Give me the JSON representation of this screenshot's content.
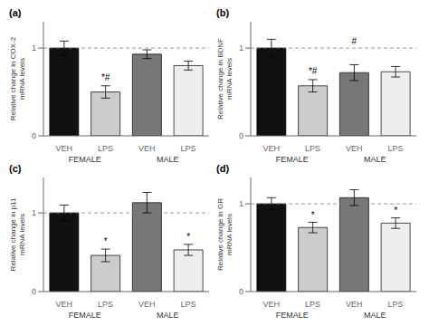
{
  "chart_data": [
    {
      "type": "bar",
      "title": "(a)",
      "ylabel": "Relative change in COX-2\nmRNA levels",
      "categories": [
        "VEH",
        "LPS",
        "VEH",
        "LPS"
      ],
      "groups": [
        "FEMALE",
        "FEMALE",
        "MALE",
        "MALE"
      ],
      "values": [
        1.0,
        0.5,
        0.93,
        0.8
      ],
      "errors": [
        0.08,
        0.07,
        0.05,
        0.05
      ],
      "colors": [
        "#111111",
        "#cccccc",
        "#777777",
        "#eeeeee"
      ],
      "ylim": [
        0,
        1.3
      ],
      "yticks": [
        0,
        1
      ],
      "reference_line": 1.0,
      "annotations": [
        {
          "text": "*#",
          "index": 1,
          "y": 0.61
        }
      ]
    },
    {
      "type": "bar",
      "title": "(b)",
      "ylabel": "Relative change in BDNF\nmRNA levels",
      "categories": [
        "VEH",
        "LPS",
        "VEH",
        "LPS"
      ],
      "groups": [
        "FEMALE",
        "FEMALE",
        "MALE",
        "MALE"
      ],
      "values": [
        1.0,
        0.57,
        0.72,
        0.73
      ],
      "errors": [
        0.1,
        0.07,
        0.09,
        0.06
      ],
      "colors": [
        "#111111",
        "#cccccc",
        "#777777",
        "#eeeeee"
      ],
      "ylim": [
        0,
        1.3
      ],
      "yticks": [
        0,
        1
      ],
      "reference_line": 1.0,
      "annotations": [
        {
          "text": "*#",
          "index": 1,
          "y": 0.68
        },
        {
          "text": "#",
          "index": 2,
          "y": 1.02
        }
      ]
    },
    {
      "type": "bar",
      "title": "(c)",
      "ylabel": "Relative change in p11\nmRNA levels",
      "categories": [
        "VEH",
        "LPS",
        "VEH",
        "LPS"
      ],
      "groups": [
        "FEMALE",
        "FEMALE",
        "MALE",
        "MALE"
      ],
      "values": [
        1.0,
        0.46,
        1.13,
        0.53
      ],
      "errors": [
        0.1,
        0.08,
        0.13,
        0.07
      ],
      "colors": [
        "#111111",
        "#cccccc",
        "#777777",
        "#eeeeee"
      ],
      "ylim": [
        0,
        1.45
      ],
      "yticks": [
        0,
        1
      ],
      "reference_line": 1.0,
      "annotations": [
        {
          "text": "*",
          "index": 1,
          "y": 0.57
        },
        {
          "text": "*",
          "index": 3,
          "y": 0.63
        }
      ]
    },
    {
      "type": "bar",
      "title": "(d)",
      "ylabel": "Relative change in GR\nmRNA levels",
      "categories": [
        "VEH",
        "LPS",
        "VEH",
        "LPS"
      ],
      "groups": [
        "FEMALE",
        "FEMALE",
        "MALE",
        "MALE"
      ],
      "values": [
        1.0,
        0.73,
        1.07,
        0.78
      ],
      "errors": [
        0.07,
        0.06,
        0.09,
        0.06
      ],
      "colors": [
        "#111111",
        "#cccccc",
        "#777777",
        "#eeeeee"
      ],
      "ylim": [
        0,
        1.3
      ],
      "yticks": [
        0,
        1
      ],
      "reference_line": 1.0,
      "annotations": [
        {
          "text": "*",
          "index": 1,
          "y": 0.82
        },
        {
          "text": "*",
          "index": 3,
          "y": 0.87
        }
      ]
    }
  ]
}
